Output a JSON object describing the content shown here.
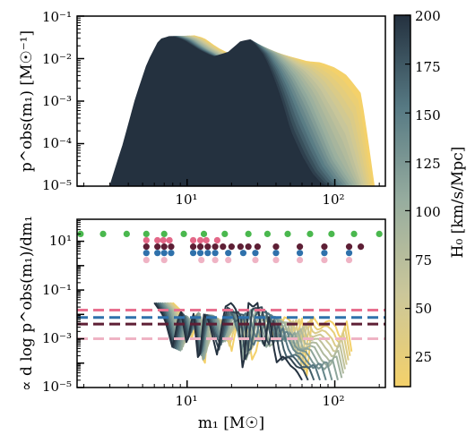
{
  "chart_data": [
    {
      "type": "area",
      "panel": "top",
      "ylabel": "p^obs(m₁) [M☉⁻¹]",
      "xscale": "log",
      "yscale": "log",
      "xlim": [
        1.8,
        220
      ],
      "ylim": [
        1e-05,
        0.1
      ],
      "y_tick_labels": [
        "10⁻⁵",
        "10⁻⁴",
        "10⁻³",
        "10⁻²",
        "10⁻¹"
      ],
      "x_tick_labels": [
        "10¹",
        "10²"
      ],
      "series": [
        {
          "H0": 10,
          "x": [
            5.5,
            6.5,
            7.5,
            8.3,
            9.5,
            11,
            13,
            16,
            20,
            24,
            30,
            38,
            45,
            55,
            65,
            80,
            100,
            120,
            150,
            170,
            185
          ],
          "y": [
            1e-05,
            0.0001,
            0.001,
            0.006,
            0.025,
            0.035,
            0.03,
            0.018,
            0.012,
            0.013,
            0.015,
            0.013,
            0.012,
            0.01,
            0.0085,
            0.008,
            0.006,
            0.004,
            0.0015,
            8e-05,
            1e-05
          ]
        },
        {
          "H0": 105,
          "x": [
            4.0,
            4.8,
            5.7,
            6.6,
            7.8,
            9.2,
            11,
            13.5,
            17,
            21,
            26,
            32,
            40,
            48,
            55,
            68,
            85,
            100,
            118,
            135
          ],
          "y": [
            1e-05,
            0.0001,
            0.0015,
            0.009,
            0.03,
            0.034,
            0.028,
            0.017,
            0.011,
            0.013,
            0.018,
            0.02,
            0.013,
            0.007,
            0.004,
            0.0012,
            0.0002,
            5e-05,
            2e-05,
            1e-05
          ]
        },
        {
          "H0": 200,
          "x": [
            3.0,
            3.7,
            4.5,
            5.4,
            6.5,
            7.8,
            9.5,
            12,
            15,
            19,
            23,
            27,
            33,
            38,
            43,
            50,
            60,
            70,
            80,
            88
          ],
          "y": [
            1e-05,
            0.0001,
            0.0012,
            0.008,
            0.028,
            0.034,
            0.027,
            0.016,
            0.011,
            0.014,
            0.025,
            0.028,
            0.012,
            0.004,
            0.0012,
            0.0002,
            5e-05,
            2e-05,
            1.2e-05,
            1e-05
          ]
        }
      ]
    },
    {
      "type": "line",
      "panel": "bottom",
      "xlabel": "m₁ [M☉]",
      "ylabel": "∝ d log p^obs(m₁)/dm₁",
      "xscale": "log",
      "yscale": "log",
      "xlim": [
        1.8,
        220
      ],
      "ylim": [
        1e-05,
        80
      ],
      "y_tick_labels": [
        "10⁻⁵",
        "10⁻³",
        "10⁻¹",
        "10¹"
      ],
      "x_tick_labels": [
        "10¹",
        "10²"
      ],
      "series": [
        {
          "H0": 10,
          "x": [
            8,
            9,
            10,
            11,
            12,
            13,
            14,
            16,
            18,
            20,
            22,
            25,
            28,
            32,
            36,
            40,
            45,
            50,
            55,
            60,
            65,
            70,
            75,
            80,
            90,
            100,
            110,
            120,
            130
          ],
          "y": [
            0.03,
            0.015,
            0.003,
            0.001,
            0.02,
            3e-05,
            0.008,
            0.004,
            0.006,
            0.0003,
            0.006,
            0.005,
            8e-05,
            0.004,
            0.006,
            0.0005,
            0.008,
            0.006,
            0.001,
            0.007,
            2e-05,
            0.01,
            0.005,
            0.003,
            0.006,
            0.004,
            0.0008,
            0.006,
            0.0003
          ]
        },
        {
          "H0": 105,
          "x": [
            7,
            8,
            9,
            10,
            11,
            12,
            13,
            14,
            16,
            18,
            20,
            22,
            25,
            28,
            32,
            36,
            40,
            45,
            50,
            55,
            60,
            70,
            80,
            90,
            100,
            110
          ],
          "y": [
            0.03,
            0.012,
            0.0002,
            0.01,
            0.002,
            0.02,
            8e-05,
            0.01,
            0.008,
            0.0005,
            0.01,
            0.012,
            5e-05,
            0.02,
            0.012,
            0.0002,
            0.008,
            0.004,
            0.0006,
            0.002,
            0.0003,
            0.0005,
            0.0001,
            5e-05,
            0.0002,
            2e-05
          ]
        },
        {
          "H0": 200,
          "x": [
            6,
            7,
            8,
            9,
            10,
            11,
            12,
            13,
            14,
            16,
            18,
            20,
            22,
            24,
            26,
            28,
            30,
            33,
            36,
            40,
            45,
            50,
            55,
            60
          ],
          "y": [
            0.03,
            0.008,
            0.0004,
            0.02,
            0.0005,
            0.015,
            8e-05,
            0.01,
            0.006,
            0.0002,
            0.02,
            0.03,
            0.012,
            3e-05,
            0.03,
            0.02,
            0.03,
            0.0003,
            0.01,
            0.0001,
            0.0002,
            8e-05,
            5e-05,
            2e-05
          ]
        }
      ],
      "hlines": [
        {
          "y": 0.015,
          "color": "#e8708f"
        },
        {
          "y": 0.0075,
          "color": "#2f71ab"
        },
        {
          "y": 0.004,
          "color": "#5e1f35"
        },
        {
          "y": 0.001,
          "color": "#efb3c4"
        }
      ],
      "markers": [
        {
          "color": "#4ab84e",
          "y": 20,
          "x": [
            1.9,
            2.7,
            3.9,
            5.3,
            7.0,
            9.5,
            13,
            18,
            26,
            35,
            48,
            68,
            95,
            135,
            200
          ]
        },
        {
          "color": "#e36888",
          "y": 11,
          "x": [
            5.3,
            6.3,
            6.9,
            7.6,
            11,
            12.3,
            13.5,
            16
          ]
        },
        {
          "color": "#5e1f35",
          "y": 6,
          "x": [
            5.3,
            6.3,
            7.0,
            7.8,
            11,
            12.3,
            13.8,
            15.5,
            17.5,
            20,
            23,
            26,
            30,
            40,
            58,
            85,
            125,
            150
          ]
        },
        {
          "color": "#2f71ab",
          "y": 3.3,
          "x": [
            5.3,
            6.3,
            7.0,
            7.8,
            11,
            12.3,
            13.8,
            15.5,
            19,
            24,
            29,
            40,
            58,
            85,
            125
          ]
        },
        {
          "color": "#efb3c4",
          "y": 1.7,
          "x": [
            5.3,
            7.0,
            12.5,
            15.5,
            19,
            29,
            40,
            58,
            85,
            125
          ]
        }
      ]
    },
    {
      "type": "colorbar",
      "label": "H₀ [km/s/Mpc]",
      "range": [
        10,
        200
      ],
      "ticks": [
        25,
        50,
        75,
        100,
        125,
        150,
        175,
        200
      ],
      "colors": [
        "#f4d16a",
        "#24313f"
      ]
    }
  ]
}
